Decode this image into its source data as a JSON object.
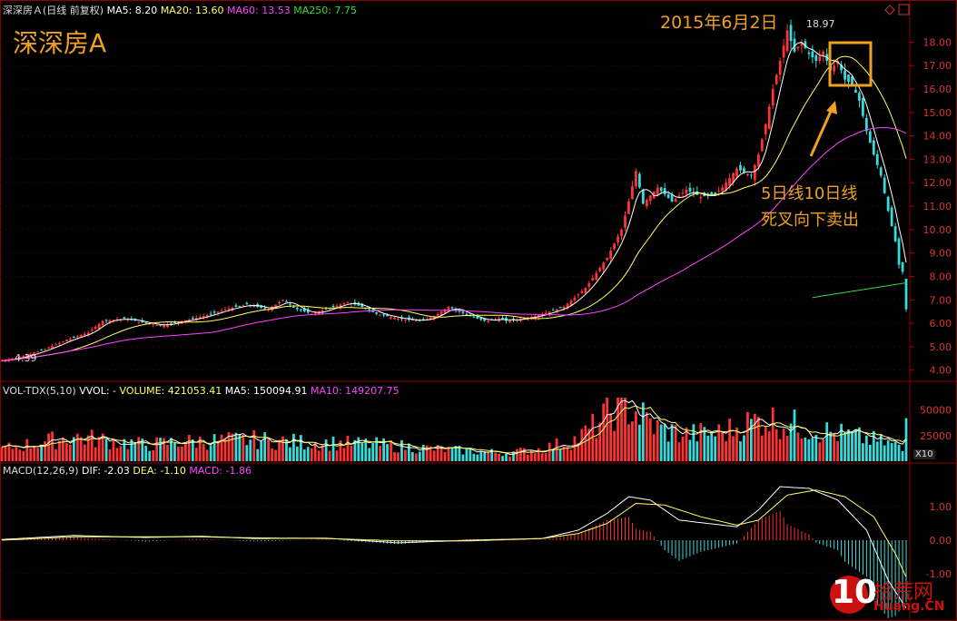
{
  "main_header": {
    "name": "深深房Ａ(日线 前复权)",
    "items": [
      {
        "label": "MA5: 8.20",
        "color": "#ffffff"
      },
      {
        "label": "MA20: 13.60",
        "color": "#ffff66"
      },
      {
        "label": "MA60: 13.53",
        "color": "#ff44ff"
      },
      {
        "label": "MA250: 7.75",
        "color": "#33dd33"
      }
    ]
  },
  "vol_header": {
    "name": "VOL-TDX(5,10)",
    "items": [
      {
        "label": "VVOL: -",
        "color": "#ffffff"
      },
      {
        "label": "VOLUME: 421053.41",
        "color": "#ffff66"
      },
      {
        "label": "MA5: 150094.91",
        "color": "#ffffff"
      },
      {
        "label": "MA10: 149207.75",
        "color": "#ff44ff"
      }
    ]
  },
  "macd_header": {
    "name": "MACD(12,26,9)",
    "items": [
      {
        "label": "DIF: -2.03",
        "color": "#ffffff"
      },
      {
        "label": "DEA: -1.10",
        "color": "#ffff66"
      },
      {
        "label": "MACD: -1.86",
        "color": "#ff44ff"
      }
    ]
  },
  "title_overlay": "深深房A",
  "annotation_date": "2015年6月2日",
  "annotation_note_1": "5日线10日线",
  "annotation_note_2": "死叉向下卖出",
  "high_label": "18.97",
  "low_label": "4.39",
  "vol_multiplier": "X10",
  "watermark": {
    "big": "10",
    "cn": "拾荒网",
    "url": "Huang.CN"
  },
  "colors": {
    "up": "#ff3333",
    "down": "#33dddd",
    "ma5": "#ffffff",
    "ma20": "#ffff66",
    "ma60": "#ff44ff",
    "ma250": "#33dd33",
    "grid": "#8b0000",
    "annotation": "#f0a020"
  },
  "chart_data": {
    "type": "candlestick",
    "price_axis": {
      "ticks": [
        "18.00",
        "17.00",
        "16.00",
        "15.00",
        "14.00",
        "13.00",
        "12.00",
        "11.00",
        "10.00",
        "9.00",
        "8.00",
        "7.00",
        "6.00",
        "5.00",
        "4.00"
      ],
      "min": 3.6,
      "max": 19.1
    },
    "volume_axis": {
      "ticks": [
        "50000",
        "25000"
      ],
      "max": 62000
    },
    "macd_axis": {
      "ticks": [
        "1.00",
        "0.00",
        "-1.00"
      ],
      "min": -2.2,
      "max": 1.9
    },
    "close_path": [
      [
        0,
        4.4
      ],
      [
        6,
        4.6
      ],
      [
        12,
        4.9
      ],
      [
        18,
        5.3
      ],
      [
        24,
        5.6
      ],
      [
        28,
        6.1
      ],
      [
        34,
        6.2
      ],
      [
        40,
        6.0
      ],
      [
        44,
        5.9
      ],
      [
        50,
        6.1
      ],
      [
        56,
        6.3
      ],
      [
        62,
        6.6
      ],
      [
        68,
        6.8
      ],
      [
        74,
        6.6
      ],
      [
        78,
        7.0
      ],
      [
        82,
        6.6
      ],
      [
        86,
        6.4
      ],
      [
        90,
        6.6
      ],
      [
        96,
        6.9
      ],
      [
        100,
        6.7
      ],
      [
        104,
        6.4
      ],
      [
        110,
        6.2
      ],
      [
        116,
        6.1
      ],
      [
        120,
        6.3
      ],
      [
        124,
        6.7
      ],
      [
        130,
        6.3
      ],
      [
        134,
        6.1
      ],
      [
        138,
        6.2
      ],
      [
        140,
        6.1
      ],
      [
        148,
        6.3
      ],
      [
        156,
        6.7
      ],
      [
        162,
        7.5
      ],
      [
        168,
        8.8
      ],
      [
        172,
        10.0
      ],
      [
        174,
        11.2
      ],
      [
        176,
        12.5
      ],
      [
        178,
        11.1
      ],
      [
        182,
        11.8
      ],
      [
        186,
        11.2
      ],
      [
        190,
        11.7
      ],
      [
        194,
        11.4
      ],
      [
        198,
        11.5
      ],
      [
        200,
        11.8
      ],
      [
        204,
        12.6
      ],
      [
        208,
        12.3
      ],
      [
        210,
        13.2
      ],
      [
        212,
        14.5
      ],
      [
        214,
        16.0
      ],
      [
        216,
        17.2
      ],
      [
        218,
        18.5
      ],
      [
        220,
        17.6
      ],
      [
        222,
        18.0
      ],
      [
        224,
        17.5
      ],
      [
        226,
        17.2
      ],
      [
        228,
        17.6
      ],
      [
        230,
        16.8
      ],
      [
        232,
        17.2
      ],
      [
        234,
        16.4
      ],
      [
        236,
        16.2
      ],
      [
        238,
        15.5
      ],
      [
        240,
        14.2
      ],
      [
        242,
        13.2
      ],
      [
        244,
        12.3
      ],
      [
        246,
        10.8
      ],
      [
        248,
        9.5
      ],
      [
        249,
        8.5
      ],
      [
        250,
        8.2
      ],
      [
        251,
        6.6
      ]
    ],
    "volume_path": [
      [
        0,
        12000
      ],
      [
        10,
        18000
      ],
      [
        20,
        24000
      ],
      [
        30,
        20000
      ],
      [
        40,
        16000
      ],
      [
        50,
        19000
      ],
      [
        60,
        20000
      ],
      [
        70,
        21000
      ],
      [
        80,
        19000
      ],
      [
        90,
        18000
      ],
      [
        100,
        17000
      ],
      [
        110,
        15000
      ],
      [
        120,
        12000
      ],
      [
        130,
        10000
      ],
      [
        140,
        8000
      ],
      [
        150,
        12000
      ],
      [
        160,
        22000
      ],
      [
        166,
        38000
      ],
      [
        170,
        52000
      ],
      [
        172,
        58000
      ],
      [
        176,
        48000
      ],
      [
        182,
        32000
      ],
      [
        190,
        26000
      ],
      [
        200,
        28000
      ],
      [
        206,
        36000
      ],
      [
        212,
        42000
      ],
      [
        216,
        38000
      ],
      [
        222,
        34000
      ],
      [
        230,
        28000
      ],
      [
        240,
        22000
      ],
      [
        248,
        16000
      ],
      [
        250,
        10000
      ],
      [
        251,
        42000
      ]
    ],
    "macd_dif_path": [
      [
        0,
        0.02
      ],
      [
        20,
        0.14
      ],
      [
        40,
        0.08
      ],
      [
        55,
        0.12
      ],
      [
        70,
        0.05
      ],
      [
        90,
        0.06
      ],
      [
        110,
        -0.08
      ],
      [
        130,
        0.0
      ],
      [
        150,
        0.05
      ],
      [
        160,
        0.3
      ],
      [
        168,
        0.8
      ],
      [
        174,
        1.3
      ],
      [
        180,
        1.2
      ],
      [
        188,
        0.6
      ],
      [
        196,
        0.5
      ],
      [
        204,
        0.4
      ],
      [
        210,
        0.9
      ],
      [
        216,
        1.6
      ],
      [
        224,
        1.55
      ],
      [
        232,
        1.2
      ],
      [
        240,
        0.3
      ],
      [
        246,
        -1.2
      ],
      [
        251,
        -2.03
      ]
    ],
    "macd_dea_path": [
      [
        0,
        0.0
      ],
      [
        20,
        0.1
      ],
      [
        40,
        0.1
      ],
      [
        55,
        0.1
      ],
      [
        70,
        0.07
      ],
      [
        90,
        0.05
      ],
      [
        110,
        -0.02
      ],
      [
        130,
        -0.02
      ],
      [
        150,
        0.05
      ],
      [
        160,
        0.2
      ],
      [
        168,
        0.5
      ],
      [
        176,
        1.1
      ],
      [
        184,
        1.05
      ],
      [
        194,
        0.7
      ],
      [
        204,
        0.45
      ],
      [
        210,
        0.6
      ],
      [
        218,
        1.35
      ],
      [
        226,
        1.5
      ],
      [
        234,
        1.3
      ],
      [
        242,
        0.7
      ],
      [
        248,
        -0.4
      ],
      [
        251,
        -1.1
      ]
    ]
  }
}
